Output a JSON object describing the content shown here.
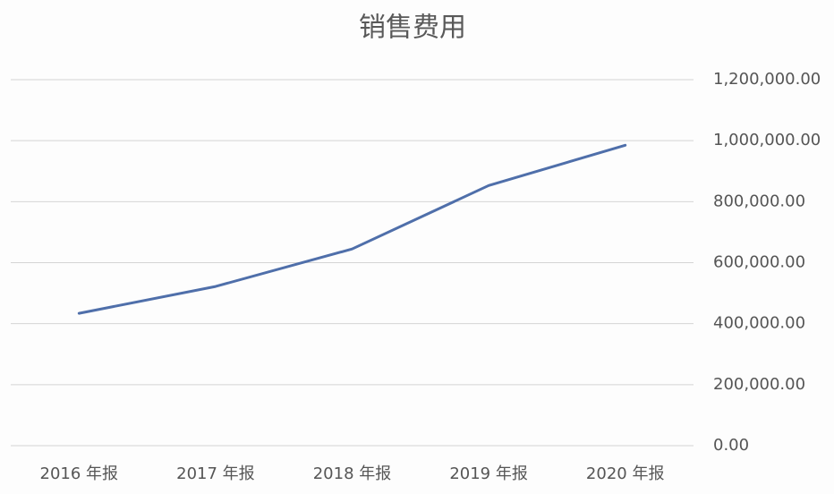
{
  "chart_data": {
    "type": "line",
    "title": "销售费用",
    "categories": [
      "2016 年报",
      "2017 年报",
      "2018 年报",
      "2019 年报",
      "2020 年报"
    ],
    "values": [
      434000,
      522000,
      645000,
      853000,
      985000
    ],
    "color": "#4f6faa",
    "ylim": [
      0,
      1200000
    ],
    "yticks": [
      {
        "value": 0,
        "label": "0.00"
      },
      {
        "value": 200000,
        "label": "200,000.00"
      },
      {
        "value": 400000,
        "label": "400,000.00"
      },
      {
        "value": 600000,
        "label": "600,000.00"
      },
      {
        "value": 800000,
        "label": "800,000.00"
      },
      {
        "value": 1000000,
        "label": "1,000,000.00"
      },
      {
        "value": 1200000,
        "label": "1,200,000.00"
      }
    ],
    "grid": true
  }
}
